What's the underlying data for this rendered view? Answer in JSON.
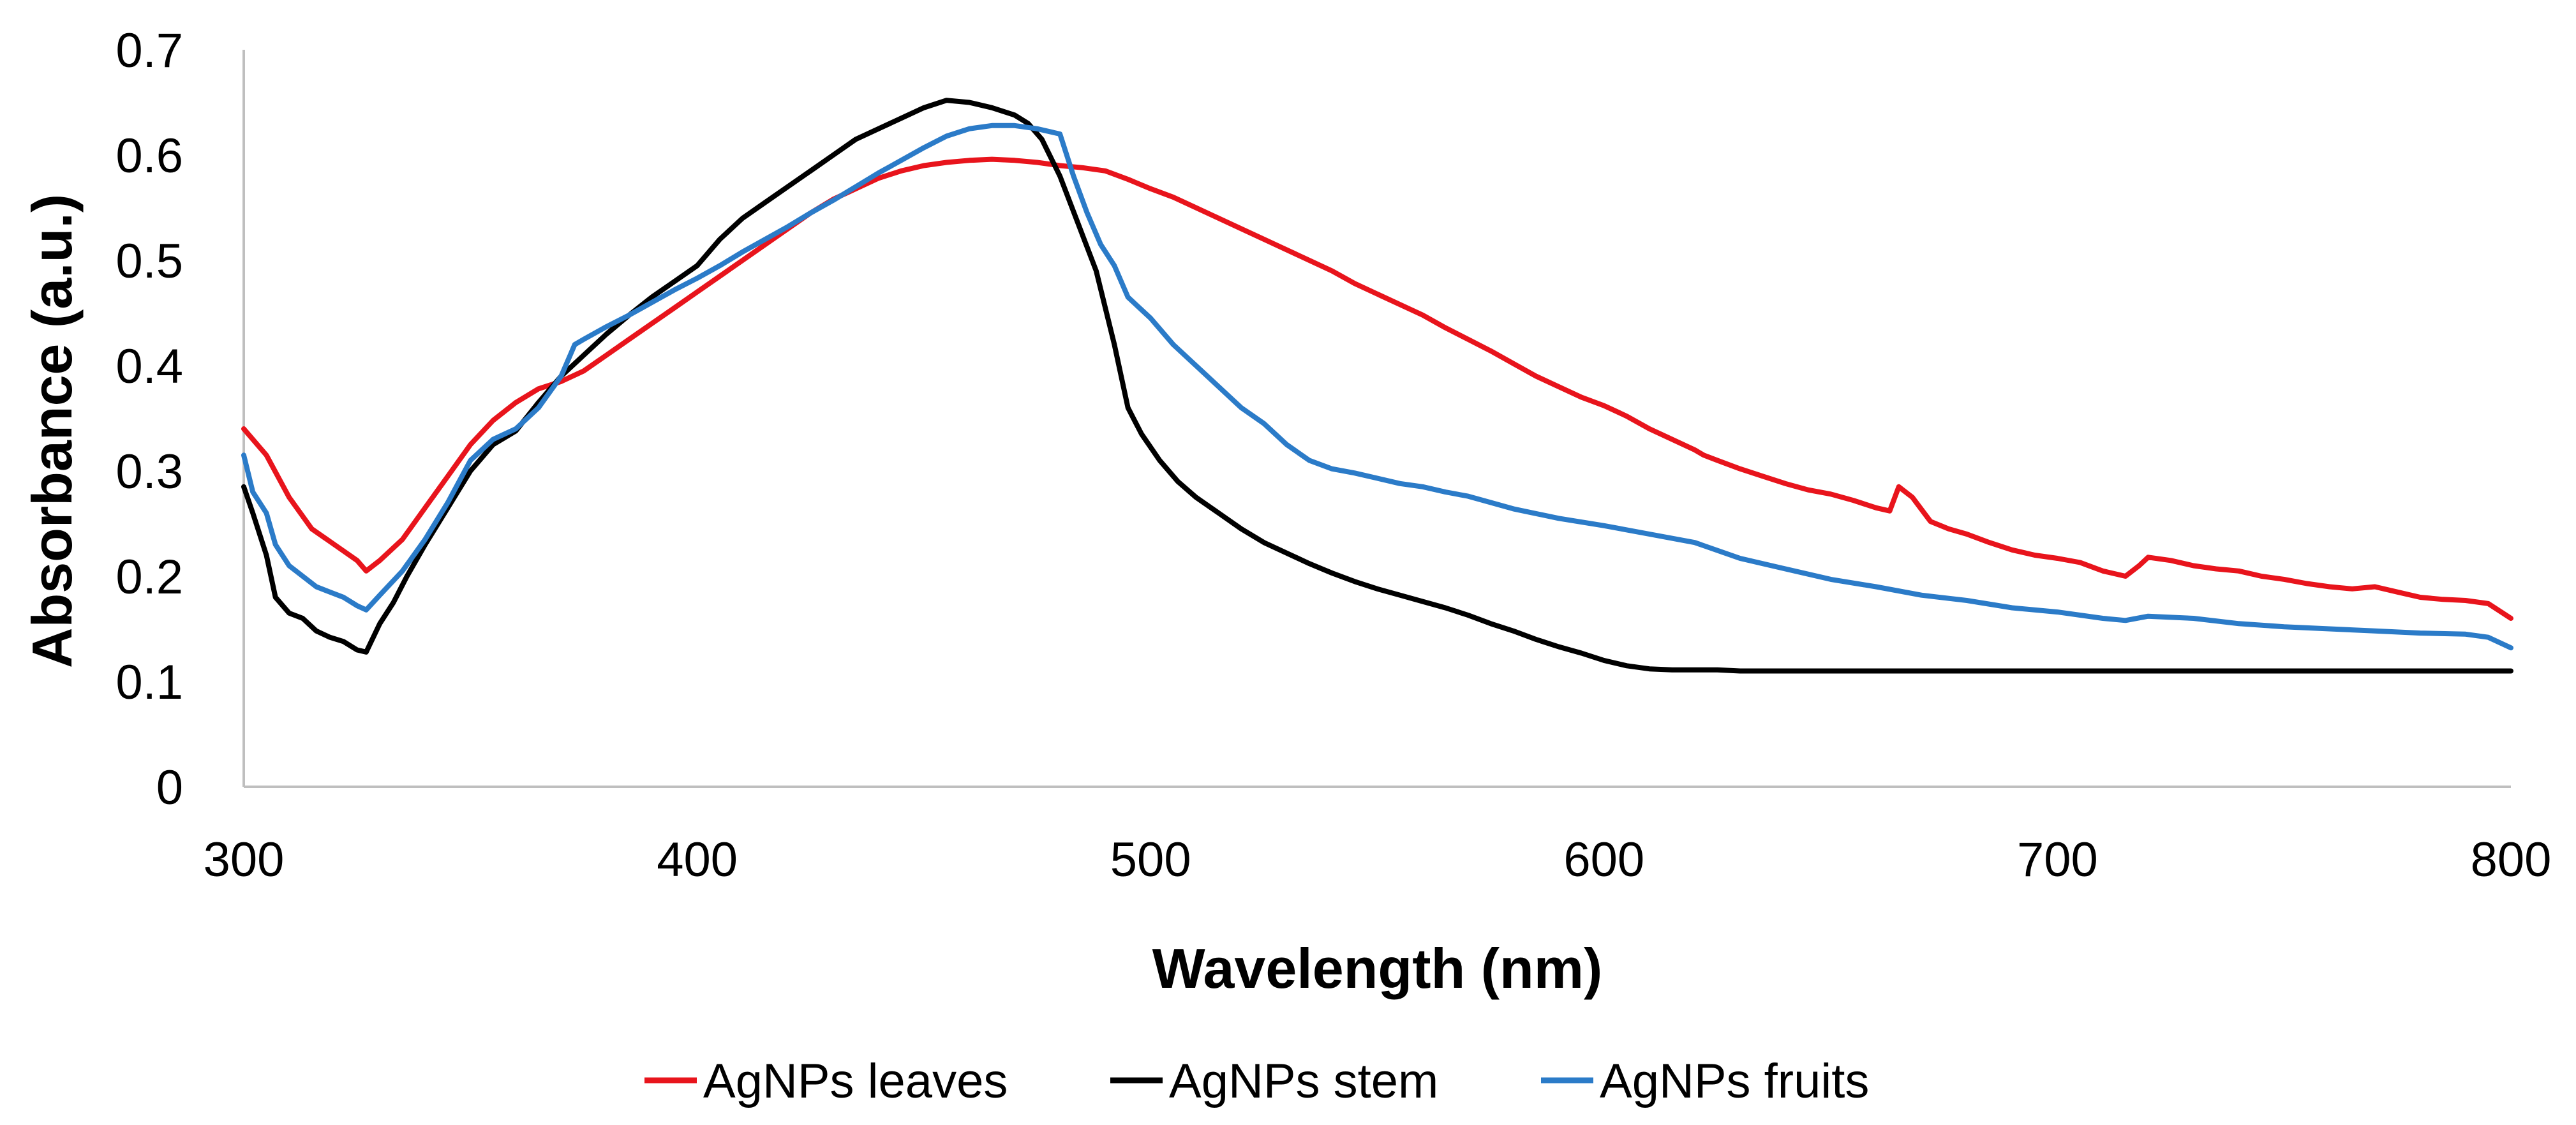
{
  "chart_data": {
    "type": "line",
    "title": "",
    "xlabel": "Wavelength (nm)",
    "ylabel": "Absorbance (a.u.)",
    "xlim": [
      300,
      800
    ],
    "ylim": [
      0,
      0.7
    ],
    "xticks": [
      300,
      400,
      500,
      600,
      700,
      800
    ],
    "xtick_labels": [
      "300",
      "400",
      "500",
      "600",
      "700",
      "800"
    ],
    "yticks": [
      0,
      0.1,
      0.2,
      0.3,
      0.4,
      0.5,
      0.6,
      0.7
    ],
    "ytick_labels": [
      "0",
      "0.1",
      "0.2",
      "0.3",
      "0.4",
      "0.5",
      "0.6",
      "0.7"
    ],
    "grid": false,
    "legend_position": "bottom",
    "series": [
      {
        "name": "AgNPs leaves",
        "color": "#e8141c",
        "x": [
          300,
          305,
          310,
          315,
          320,
          325,
          327,
          330,
          335,
          340,
          345,
          350,
          355,
          360,
          365,
          370,
          375,
          380,
          385,
          390,
          395,
          400,
          405,
          410,
          415,
          420,
          425,
          430,
          435,
          440,
          445,
          450,
          455,
          460,
          465,
          470,
          475,
          480,
          485,
          490,
          495,
          500,
          505,
          510,
          515,
          520,
          525,
          530,
          535,
          540,
          545,
          550,
          555,
          560,
          565,
          570,
          575,
          580,
          585,
          590,
          595,
          600,
          605,
          610,
          615,
          620,
          622,
          625,
          630,
          635,
          640,
          645,
          650,
          655,
          660,
          663,
          665,
          668,
          672,
          676,
          680,
          685,
          690,
          695,
          700,
          705,
          710,
          715,
          718,
          720,
          725,
          730,
          735,
          740,
          745,
          750,
          755,
          760,
          765,
          770,
          775,
          780,
          785,
          790,
          795,
          800
        ],
        "y": [
          0.34,
          0.315,
          0.275,
          0.245,
          0.23,
          0.215,
          0.205,
          0.215,
          0.235,
          0.265,
          0.295,
          0.325,
          0.348,
          0.365,
          0.378,
          0.385,
          0.395,
          0.41,
          0.425,
          0.44,
          0.455,
          0.47,
          0.485,
          0.5,
          0.515,
          0.53,
          0.545,
          0.558,
          0.568,
          0.578,
          0.585,
          0.59,
          0.593,
          0.595,
          0.596,
          0.595,
          0.593,
          0.59,
          0.588,
          0.585,
          0.577,
          0.568,
          0.56,
          0.55,
          0.54,
          0.53,
          0.52,
          0.51,
          0.5,
          0.49,
          0.478,
          0.468,
          0.458,
          0.448,
          0.436,
          0.425,
          0.414,
          0.402,
          0.39,
          0.38,
          0.37,
          0.362,
          0.352,
          0.34,
          0.33,
          0.32,
          0.315,
          0.31,
          0.302,
          0.295,
          0.288,
          0.282,
          0.278,
          0.272,
          0.265,
          0.262,
          0.285,
          0.275,
          0.252,
          0.245,
          0.24,
          0.232,
          0.225,
          0.22,
          0.217,
          0.213,
          0.205,
          0.2,
          0.21,
          0.218,
          0.215,
          0.21,
          0.207,
          0.205,
          0.2,
          0.197,
          0.193,
          0.19,
          0.188,
          0.19,
          0.185,
          0.18,
          0.178,
          0.177,
          0.174,
          0.16
        ]
      },
      {
        "name": "AgNPs stem",
        "color": "#000000",
        "x": [
          300,
          302,
          305,
          307,
          310,
          313,
          316,
          319,
          322,
          325,
          327,
          330,
          333,
          336,
          340,
          345,
          350,
          355,
          360,
          365,
          370,
          375,
          380,
          385,
          390,
          395,
          400,
          405,
          410,
          415,
          420,
          425,
          430,
          435,
          440,
          445,
          450,
          455,
          460,
          465,
          470,
          473,
          476,
          480,
          484,
          488,
          492,
          495,
          498,
          502,
          506,
          510,
          515,
          520,
          525,
          530,
          535,
          540,
          545,
          550,
          555,
          560,
          565,
          570,
          575,
          580,
          585,
          590,
          595,
          600,
          605,
          610,
          615,
          620,
          625,
          630,
          640,
          650,
          660,
          670,
          680,
          690,
          700,
          710,
          720,
          730,
          740,
          750,
          760,
          770,
          780,
          790,
          800
        ],
        "y": [
          0.285,
          0.26,
          0.22,
          0.18,
          0.165,
          0.16,
          0.148,
          0.142,
          0.138,
          0.13,
          0.128,
          0.155,
          0.175,
          0.2,
          0.23,
          0.265,
          0.3,
          0.325,
          0.338,
          0.365,
          0.39,
          0.41,
          0.43,
          0.448,
          0.465,
          0.48,
          0.495,
          0.52,
          0.54,
          0.555,
          0.57,
          0.585,
          0.6,
          0.615,
          0.625,
          0.635,
          0.645,
          0.652,
          0.65,
          0.645,
          0.638,
          0.63,
          0.615,
          0.58,
          0.535,
          0.49,
          0.42,
          0.36,
          0.335,
          0.31,
          0.29,
          0.275,
          0.26,
          0.245,
          0.232,
          0.222,
          0.212,
          0.203,
          0.195,
          0.188,
          0.182,
          0.176,
          0.17,
          0.163,
          0.155,
          0.148,
          0.14,
          0.133,
          0.127,
          0.12,
          0.115,
          0.112,
          0.111,
          0.111,
          0.111,
          0.11,
          0.11,
          0.11,
          0.11,
          0.11,
          0.11,
          0.11,
          0.11,
          0.11,
          0.11,
          0.11,
          0.11,
          0.11,
          0.11,
          0.11,
          0.11,
          0.11,
          0.11
        ]
      },
      {
        "name": "AgNPs fruits",
        "color": "#2b7bc8",
        "x": [
          300,
          302,
          305,
          307,
          310,
          313,
          316,
          319,
          322,
          325,
          327,
          330,
          335,
          340,
          345,
          350,
          355,
          360,
          365,
          370,
          373,
          375,
          380,
          385,
          390,
          395,
          400,
          405,
          410,
          415,
          420,
          425,
          430,
          435,
          440,
          445,
          450,
          455,
          460,
          465,
          470,
          475,
          480,
          483,
          486,
          489,
          492,
          495,
          500,
          505,
          510,
          515,
          520,
          525,
          530,
          535,
          540,
          545,
          550,
          555,
          560,
          565,
          570,
          575,
          580,
          590,
          600,
          610,
          620,
          630,
          640,
          650,
          660,
          670,
          680,
          690,
          700,
          710,
          715,
          720,
          730,
          740,
          750,
          760,
          770,
          780,
          790,
          795,
          800
        ],
        "y": [
          0.315,
          0.28,
          0.26,
          0.23,
          0.21,
          0.2,
          0.19,
          0.185,
          0.18,
          0.172,
          0.168,
          0.182,
          0.205,
          0.235,
          0.27,
          0.31,
          0.33,
          0.34,
          0.36,
          0.39,
          0.42,
          0.425,
          0.437,
          0.448,
          0.46,
          0.472,
          0.483,
          0.495,
          0.508,
          0.52,
          0.532,
          0.545,
          0.557,
          0.57,
          0.583,
          0.595,
          0.607,
          0.618,
          0.625,
          0.628,
          0.628,
          0.625,
          0.62,
          0.58,
          0.545,
          0.515,
          0.495,
          0.465,
          0.445,
          0.42,
          0.4,
          0.38,
          0.36,
          0.345,
          0.325,
          0.31,
          0.302,
          0.298,
          0.293,
          0.288,
          0.285,
          0.28,
          0.276,
          0.27,
          0.264,
          0.255,
          0.248,
          0.24,
          0.232,
          0.217,
          0.207,
          0.197,
          0.19,
          0.182,
          0.177,
          0.17,
          0.166,
          0.16,
          0.158,
          0.162,
          0.16,
          0.155,
          0.152,
          0.15,
          0.148,
          0.146,
          0.145,
          0.142,
          0.132
        ]
      }
    ]
  }
}
